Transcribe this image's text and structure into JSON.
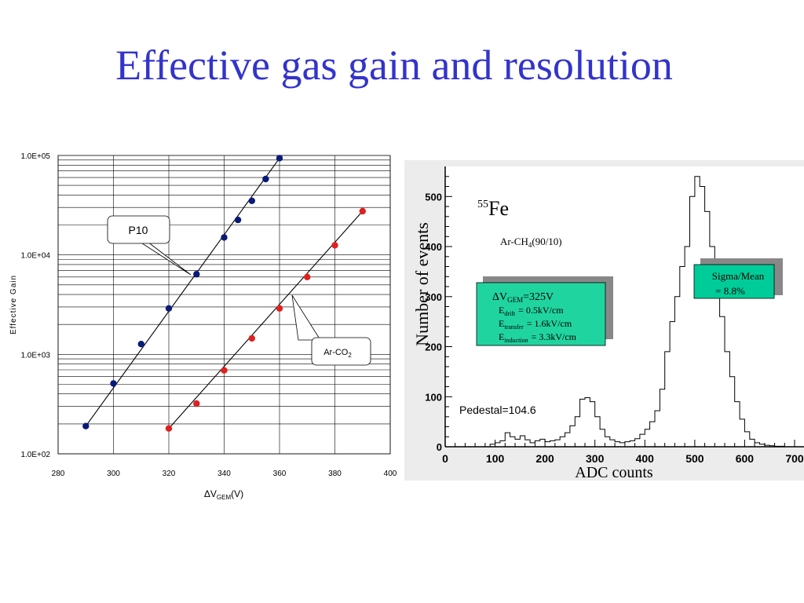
{
  "slide": {
    "title": "Effective gas gain and resolution"
  },
  "chart_data": [
    {
      "type": "scatter",
      "xlabel": {
        "main": "ΔV",
        "sub": "GEM",
        "unit": "(V)"
      },
      "ylabel": "Effective Gain",
      "xlim": [
        280,
        400
      ],
      "ylim": [
        100,
        100000
      ],
      "yscale": "log",
      "grid": true,
      "x_ticks": [
        "280",
        "300",
        "320",
        "340",
        "360",
        "380",
        "400"
      ],
      "y_ticks": [
        "1.0E+02",
        "1.0E+03",
        "1.0E+04",
        "1.0E+05"
      ],
      "series": [
        {
          "name": "P10",
          "color": "#0a1a78",
          "points": [
            [
              290,
              190
            ],
            [
              300,
              510
            ],
            [
              310,
              1270
            ],
            [
              320,
              2900
            ],
            [
              330,
              6400
            ],
            [
              340,
              15000
            ],
            [
              345,
              22500
            ],
            [
              350,
              35000
            ],
            [
              355,
              58000
            ],
            [
              360,
              94000
            ]
          ],
          "fit": [
            [
              290,
              190
            ],
            [
              360,
              94000
            ]
          ]
        },
        {
          "name": "Ar-CO",
          "name_sub": "2",
          "color": "#e02020",
          "points": [
            [
              320,
              180
            ],
            [
              330,
              320
            ],
            [
              340,
              690
            ],
            [
              350,
              1450
            ],
            [
              360,
              2900
            ],
            [
              370,
              6000
            ],
            [
              380,
              12500
            ],
            [
              390,
              27500
            ]
          ],
          "fit": [
            [
              320,
              180
            ],
            [
              390,
              27500
            ]
          ]
        }
      ]
    },
    {
      "type": "histogram",
      "xlabel": "ADC counts",
      "ylabel": "Number of events",
      "xlim": [
        0,
        700
      ],
      "ylim": [
        0,
        560
      ],
      "x_ticks": [
        "0",
        "100",
        "200",
        "300",
        "400",
        "500",
        "600",
        "700"
      ],
      "y_ticks": [
        "0",
        "100",
        "200",
        "300",
        "400",
        "500"
      ],
      "bin_width": 10,
      "bins_start": 0,
      "values": [
        0,
        0,
        0,
        0,
        0,
        0,
        0,
        0,
        0,
        5,
        8,
        12,
        28,
        20,
        15,
        22,
        14,
        8,
        12,
        15,
        10,
        12,
        14,
        20,
        28,
        42,
        60,
        95,
        98,
        90,
        60,
        35,
        20,
        14,
        10,
        8,
        10,
        12,
        16,
        25,
        35,
        50,
        72,
        115,
        190,
        250,
        300,
        360,
        400,
        500,
        540,
        520,
        470,
        400,
        330,
        260,
        190,
        140,
        90,
        55,
        30,
        15,
        8,
        5,
        3,
        2,
        1,
        1,
        0,
        0
      ],
      "isotope": {
        "sup": "55",
        "label": "Fe"
      },
      "gas": {
        "prefix": "Ar-CH",
        "sub": "4",
        "suffix": "(90/10)"
      },
      "pedestal": "Pedestal=104.6",
      "sigma_box": {
        "line1": "Sigma/Mean",
        "line2": "= 8.8%",
        "color": "#00cc99"
      },
      "field_box": {
        "color": "#20d4a0",
        "v_prefix": "ΔV",
        "v_sub": "GEM",
        "v_value": "=325V",
        "rows": [
          {
            "main": "E",
            "sub": "drift",
            "value": "= 0.5kV/cm"
          },
          {
            "main": "E",
            "sub": "transfer",
            "value": "= 1.6kV/cm"
          },
          {
            "main": "E",
            "sub": "induction",
            "value": "= 3.3kV/cm"
          }
        ]
      }
    }
  ]
}
